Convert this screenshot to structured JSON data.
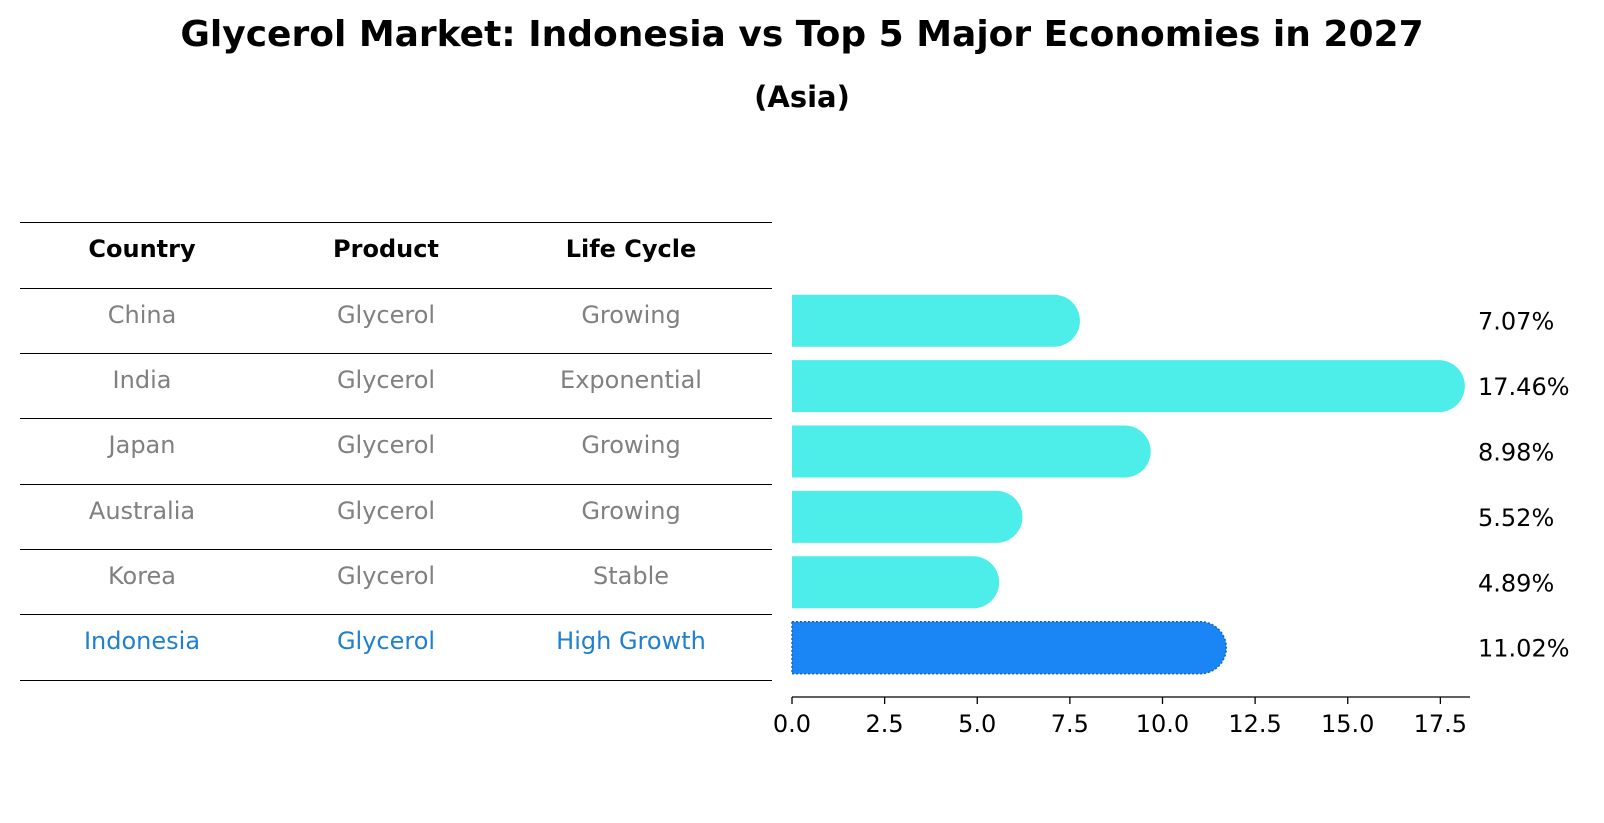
{
  "title": "Glycerol Market: Indonesia vs Top 5 Major Economies in 2027",
  "subtitle": "(Asia)",
  "table": {
    "headers": [
      "Country",
      "Product",
      "Life Cycle"
    ],
    "rows": [
      [
        "China",
        "Glycerol",
        "Growing"
      ],
      [
        "India",
        "Glycerol",
        "Exponential"
      ],
      [
        "Japan",
        "Glycerol",
        "Growing"
      ],
      [
        "Australia",
        "Glycerol",
        "Growing"
      ],
      [
        "Korea",
        "Glycerol",
        "Stable"
      ],
      [
        "Indonesia",
        "Glycerol",
        "High Growth"
      ]
    ],
    "highlight_row": 5
  },
  "colors": {
    "bar": "#4deeea",
    "highlight_bar": "#1a85f5",
    "row_text": "#808080",
    "highlight_text": "#1f7fd0"
  },
  "chart_data": {
    "type": "bar",
    "orientation": "horizontal",
    "categories": [
      "China",
      "India",
      "Japan",
      "Australia",
      "Korea",
      "Indonesia"
    ],
    "values": [
      7.07,
      17.46,
      8.98,
      5.52,
      4.89,
      11.02
    ],
    "value_labels": [
      "7.07%",
      "17.46%",
      "8.98%",
      "5.52%",
      "4.89%",
      "11.02%"
    ],
    "xlim": [
      0,
      18.3
    ],
    "xticks": [
      0.0,
      2.5,
      5.0,
      7.5,
      10.0,
      12.5,
      15.0,
      17.5
    ],
    "xtick_labels": [
      "0.0",
      "2.5",
      "5.0",
      "7.5",
      "10.0",
      "12.5",
      "15.0",
      "17.5"
    ],
    "highlight_category": "Indonesia",
    "grid": false
  }
}
